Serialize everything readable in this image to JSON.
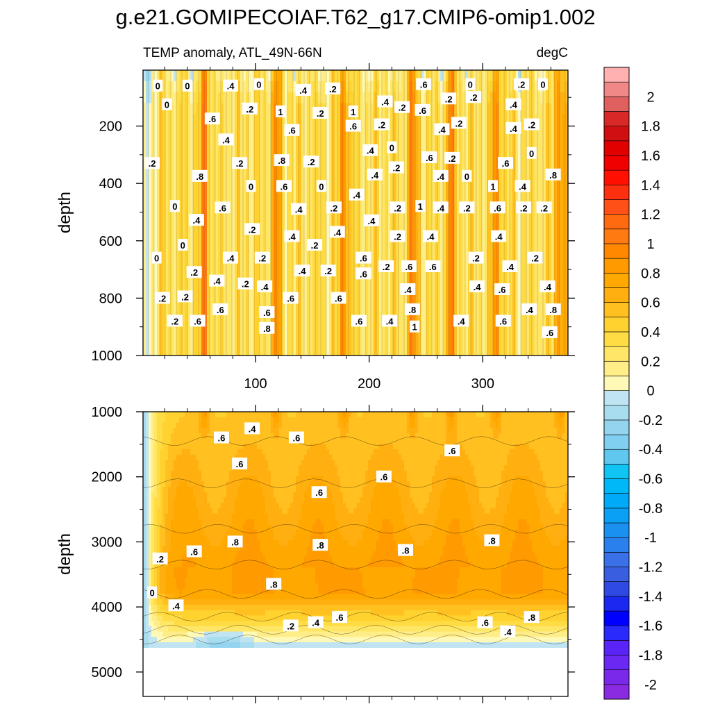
{
  "figure": {
    "title": "g.e21.GOMIPECOIAF.T62_g17.CMIP6-omip1.002",
    "left_subtitle": "TEMP anomaly, ATL_49N-66N",
    "right_subtitle": "degC"
  },
  "chart_data": [
    {
      "type": "heatmap",
      "panel": "upper",
      "title": "",
      "xlabel": "",
      "ylabel": "depth",
      "xlim": [
        1,
        375
      ],
      "ylim": [
        1000,
        5
      ],
      "y_inverted": true,
      "x_ticks": [
        100,
        200,
        300
      ],
      "y_ticks": [
        200,
        400,
        600,
        800,
        1000
      ],
      "grid": false,
      "periodic_warm_maxima_x": [
        55,
        118,
        178,
        238,
        272,
        312,
        368
      ],
      "contour_labels": [
        {
          "x": 14,
          "y": 60,
          "label": "0"
        },
        {
          "x": 40,
          "y": 60,
          "label": "0"
        },
        {
          "x": 22,
          "y": 125,
          "label": "0"
        },
        {
          "x": 78,
          "y": 60,
          "label": ".4"
        },
        {
          "x": 103,
          "y": 55,
          "label": "0"
        },
        {
          "x": 142,
          "y": 75,
          "label": ".4"
        },
        {
          "x": 168,
          "y": 70,
          "label": ".2"
        },
        {
          "x": 248,
          "y": 55,
          "label": ".6"
        },
        {
          "x": 289,
          "y": 55,
          "label": "0"
        },
        {
          "x": 334,
          "y": 55,
          "label": ".2"
        },
        {
          "x": 353,
          "y": 55,
          "label": "0"
        },
        {
          "x": 62,
          "y": 175,
          "label": ".6"
        },
        {
          "x": 95,
          "y": 140,
          "label": ".2"
        },
        {
          "x": 122,
          "y": 150,
          "label": "1"
        },
        {
          "x": 157,
          "y": 155,
          "label": ".2"
        },
        {
          "x": 186,
          "y": 150,
          "label": "1"
        },
        {
          "x": 214,
          "y": 115,
          "label": ".4"
        },
        {
          "x": 229,
          "y": 135,
          "label": ".2"
        },
        {
          "x": 247,
          "y": 145,
          "label": ".6"
        },
        {
          "x": 270,
          "y": 105,
          "label": ".2"
        },
        {
          "x": 292,
          "y": 100,
          "label": ".2"
        },
        {
          "x": 327,
          "y": 125,
          "label": ".4"
        },
        {
          "x": 74,
          "y": 248,
          "label": ".4"
        },
        {
          "x": 132,
          "y": 215,
          "label": ".6"
        },
        {
          "x": 186,
          "y": 200,
          "label": ".6"
        },
        {
          "x": 211,
          "y": 195,
          "label": ".2"
        },
        {
          "x": 264,
          "y": 212,
          "label": ".4"
        },
        {
          "x": 279,
          "y": 190,
          "label": ".2"
        },
        {
          "x": 327,
          "y": 208,
          "label": ".4"
        },
        {
          "x": 343,
          "y": 195,
          "label": ".2"
        },
        {
          "x": 9,
          "y": 330,
          "label": ".2"
        },
        {
          "x": 86,
          "y": 330,
          "label": ".2"
        },
        {
          "x": 123,
          "y": 320,
          "label": ".8"
        },
        {
          "x": 149,
          "y": 325,
          "label": ".2"
        },
        {
          "x": 201,
          "y": 285,
          "label": ".4"
        },
        {
          "x": 220,
          "y": 275,
          "label": "0"
        },
        {
          "x": 224,
          "y": 345,
          "label": ".2"
        },
        {
          "x": 253,
          "y": 310,
          "label": ".6"
        },
        {
          "x": 273,
          "y": 312,
          "label": ".2"
        },
        {
          "x": 320,
          "y": 330,
          "label": ".6"
        },
        {
          "x": 343,
          "y": 295,
          "label": "0"
        },
        {
          "x": 51,
          "y": 375,
          "label": ".8"
        },
        {
          "x": 96,
          "y": 410,
          "label": "0"
        },
        {
          "x": 125,
          "y": 410,
          "label": ".6"
        },
        {
          "x": 158,
          "y": 410,
          "label": "0"
        },
        {
          "x": 205,
          "y": 370,
          "label": ".4"
        },
        {
          "x": 263,
          "y": 375,
          "label": ".4"
        },
        {
          "x": 286,
          "y": 375,
          "label": "0"
        },
        {
          "x": 309,
          "y": 410,
          "label": "1"
        },
        {
          "x": 335,
          "y": 410,
          "label": ".4"
        },
        {
          "x": 362,
          "y": 370,
          "label": ".8"
        },
        {
          "x": 29,
          "y": 480,
          "label": "0"
        },
        {
          "x": 71,
          "y": 485,
          "label": ".6"
        },
        {
          "x": 138,
          "y": 490,
          "label": ".4"
        },
        {
          "x": 169,
          "y": 485,
          "label": ".2"
        },
        {
          "x": 189,
          "y": 440,
          "label": ".4"
        },
        {
          "x": 225,
          "y": 485,
          "label": ".2"
        },
        {
          "x": 245,
          "y": 480,
          "label": "1"
        },
        {
          "x": 263,
          "y": 485,
          "label": ".4"
        },
        {
          "x": 286,
          "y": 485,
          "label": ".2"
        },
        {
          "x": 313,
          "y": 485,
          "label": ".6"
        },
        {
          "x": 336,
          "y": 485,
          "label": ".2"
        },
        {
          "x": 354,
          "y": 485,
          "label": ".2"
        },
        {
          "x": 48,
          "y": 528,
          "label": ".4"
        },
        {
          "x": 97,
          "y": 560,
          "label": ".2"
        },
        {
          "x": 132,
          "y": 585,
          "label": ".4"
        },
        {
          "x": 172,
          "y": 570,
          "label": ".4"
        },
        {
          "x": 202,
          "y": 530,
          "label": ".4"
        },
        {
          "x": 225,
          "y": 585,
          "label": ".2"
        },
        {
          "x": 254,
          "y": 585,
          "label": ".4"
        },
        {
          "x": 314,
          "y": 585,
          "label": ".4"
        },
        {
          "x": 13,
          "y": 660,
          "label": "0"
        },
        {
          "x": 36,
          "y": 615,
          "label": "0"
        },
        {
          "x": 78,
          "y": 660,
          "label": ".4"
        },
        {
          "x": 106,
          "y": 660,
          "label": ".2"
        },
        {
          "x": 152,
          "y": 615,
          "label": ".2"
        },
        {
          "x": 195,
          "y": 660,
          "label": ".6"
        },
        {
          "x": 294,
          "y": 660,
          "label": ".2"
        },
        {
          "x": 346,
          "y": 660,
          "label": ".2"
        },
        {
          "x": 46,
          "y": 710,
          "label": ".2"
        },
        {
          "x": 141,
          "y": 705,
          "label": ".4"
        },
        {
          "x": 164,
          "y": 705,
          "label": ".2"
        },
        {
          "x": 195,
          "y": 715,
          "label": ".6"
        },
        {
          "x": 215,
          "y": 690,
          "label": ".2"
        },
        {
          "x": 235,
          "y": 690,
          "label": ".6"
        },
        {
          "x": 256,
          "y": 690,
          "label": ".6"
        },
        {
          "x": 324,
          "y": 690,
          "label": ".4"
        },
        {
          "x": 66,
          "y": 740,
          "label": ".4"
        },
        {
          "x": 91,
          "y": 750,
          "label": ".2"
        },
        {
          "x": 108,
          "y": 760,
          "label": ".4"
        },
        {
          "x": 295,
          "y": 760,
          "label": ".4"
        },
        {
          "x": 317,
          "y": 770,
          "label": ".6"
        },
        {
          "x": 357,
          "y": 760,
          "label": ".4"
        },
        {
          "x": 18,
          "y": 800,
          "label": ".2"
        },
        {
          "x": 38,
          "y": 795,
          "label": ".2"
        },
        {
          "x": 131,
          "y": 800,
          "label": ".6"
        },
        {
          "x": 173,
          "y": 800,
          "label": ".6"
        },
        {
          "x": 234,
          "y": 770,
          "label": ".4"
        },
        {
          "x": 69,
          "y": 840,
          "label": ".6"
        },
        {
          "x": 110,
          "y": 850,
          "label": ".6"
        },
        {
          "x": 238,
          "y": 840,
          "label": ".8"
        },
        {
          "x": 341,
          "y": 840,
          "label": ".4"
        },
        {
          "x": 362,
          "y": 840,
          "label": ".8"
        },
        {
          "x": 29,
          "y": 880,
          "label": ".2"
        },
        {
          "x": 49,
          "y": 880,
          "label": ".6"
        },
        {
          "x": 110,
          "y": 905,
          "label": ".8"
        },
        {
          "x": 191,
          "y": 880,
          "label": ".6"
        },
        {
          "x": 218,
          "y": 880,
          "label": ".4"
        },
        {
          "x": 240,
          "y": 900,
          "label": "1"
        },
        {
          "x": 281,
          "y": 880,
          "label": ".4"
        },
        {
          "x": 318,
          "y": 880,
          "label": ".6"
        },
        {
          "x": 359,
          "y": 920,
          "label": ".6"
        }
      ]
    },
    {
      "type": "heatmap",
      "panel": "lower",
      "title": "",
      "xlabel": "",
      "ylabel": "depth",
      "xlim": [
        1,
        375
      ],
      "ylim": [
        5375,
        1000
      ],
      "y_inverted": true,
      "x_ticks": [
        100,
        200,
        300
      ],
      "y_ticks": [
        1000,
        2000,
        3000,
        4000,
        5000
      ],
      "grid": false,
      "data_bottom_depth": 4625,
      "contour_labels": [
        {
          "x": 70,
          "y": 1400,
          "label": ".6"
        },
        {
          "x": 97,
          "y": 1260,
          "label": ".4"
        },
        {
          "x": 136,
          "y": 1400,
          "label": ".6"
        },
        {
          "x": 86,
          "y": 1800,
          "label": ".6"
        },
        {
          "x": 273,
          "y": 1600,
          "label": ".6"
        },
        {
          "x": 156,
          "y": 2240,
          "label": ".6"
        },
        {
          "x": 213,
          "y": 2000,
          "label": ".6"
        },
        {
          "x": 16,
          "y": 3260,
          "label": ".2"
        },
        {
          "x": 46,
          "y": 3150,
          "label": ".6"
        },
        {
          "x": 82,
          "y": 3000,
          "label": ".8"
        },
        {
          "x": 157,
          "y": 3050,
          "label": ".8"
        },
        {
          "x": 232,
          "y": 3130,
          "label": ".8"
        },
        {
          "x": 308,
          "y": 2980,
          "label": ".8"
        },
        {
          "x": 116,
          "y": 3650,
          "label": ".8"
        },
        {
          "x": 9,
          "y": 3780,
          "label": "0"
        },
        {
          "x": 30,
          "y": 3980,
          "label": ".4"
        },
        {
          "x": 131,
          "y": 4290,
          "label": ".2"
        },
        {
          "x": 153,
          "y": 4240,
          "label": ".4"
        },
        {
          "x": 174,
          "y": 4160,
          "label": ".6"
        },
        {
          "x": 302,
          "y": 4240,
          "label": ".6"
        },
        {
          "x": 322,
          "y": 4380,
          "label": ".4"
        },
        {
          "x": 343,
          "y": 4160,
          "label": ".8"
        }
      ]
    },
    {
      "type": "colorbar",
      "levels": [
        -2.1,
        -2,
        -1.9,
        -1.8,
        -1.7,
        -1.6,
        -1.5,
        -1.4,
        -1.3,
        -1.2,
        -1.1,
        -1,
        -0.9,
        -0.8,
        -0.7,
        -0.6,
        -0.5,
        -0.4,
        -0.3,
        -0.2,
        -0.1,
        0,
        0.1,
        0.2,
        0.3,
        0.4,
        0.5,
        0.6,
        0.7,
        0.8,
        0.9,
        1,
        1.1,
        1.2,
        1.3,
        1.4,
        1.5,
        1.6,
        1.7,
        1.8,
        1.9,
        2,
        2.1
      ],
      "colors": [
        "#8a2be2",
        "#7a28ea",
        "#6a28f2",
        "#5a24f8",
        "#2a2afc",
        "#0000ff",
        "#1a28f0",
        "#2e4ae2",
        "#3a5ee0",
        "#3a70e8",
        "#2a80ec",
        "#1a90f0",
        "#0aa0f4",
        "#00aaf8",
        "#00b8f8",
        "#10c4f4",
        "#60c8ee",
        "#80cef0",
        "#94d4ee",
        "#a8dcef",
        "#c0e4f2",
        "#fff9b8",
        "#ffee88",
        "#ffe666",
        "#ffdc44",
        "#ffd230",
        "#ffc020",
        "#ffb010",
        "#ffa800",
        "#ff9a00",
        "#ff8800",
        "#ff7a10",
        "#ff6a10",
        "#ff5018",
        "#ff3010",
        "#ff1000",
        "#f00000",
        "#e00000",
        "#d01010",
        "#d82828",
        "#e06060",
        "#f08888",
        "#ffb0b0"
      ],
      "tick_labels": [
        "2",
        "1.8",
        "1.6",
        "1.4",
        "1.2",
        "1",
        "0.8",
        "0.6",
        "0.4",
        "0.2",
        "0",
        "-0.2",
        "-0.4",
        "-0.6",
        "-0.8",
        "-1",
        "-1.2",
        "-1.4",
        "-1.6",
        "-1.8",
        "-2"
      ]
    }
  ]
}
